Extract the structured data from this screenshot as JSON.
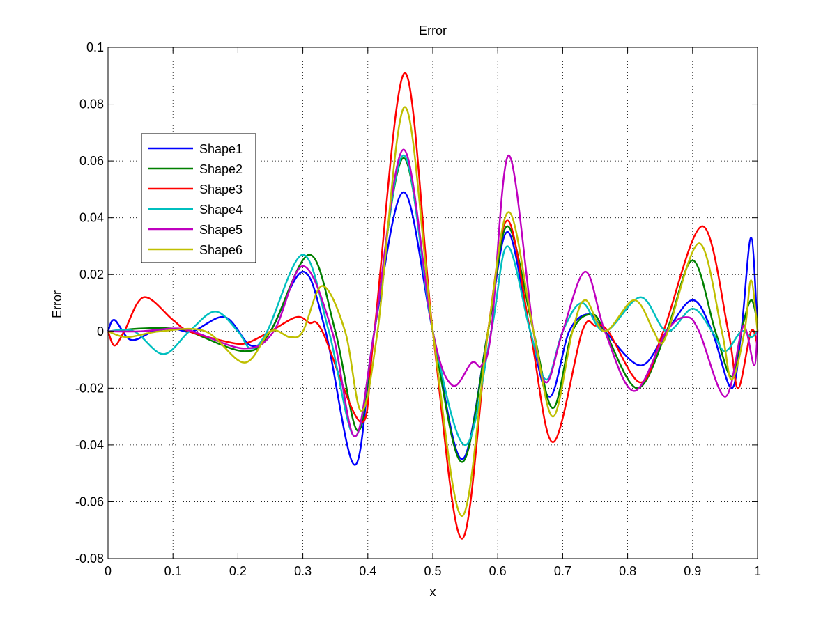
{
  "chart_data": {
    "type": "line",
    "title": "Error",
    "xlabel": "x",
    "ylabel": "Error",
    "xlim": [
      0,
      1
    ],
    "ylim": [
      -0.08,
      0.1
    ],
    "xticks": [
      0,
      0.1,
      0.2,
      0.3,
      0.4,
      0.5,
      0.6,
      0.7,
      0.8,
      0.9,
      1
    ],
    "xtick_labels": [
      "0",
      "0.1",
      "0.2",
      "0.3",
      "0.4",
      "0.5",
      "0.6",
      "0.7",
      "0.8",
      "0.9",
      "1"
    ],
    "yticks": [
      -0.08,
      -0.06,
      -0.04,
      -0.02,
      0,
      0.02,
      0.04,
      0.06,
      0.08,
      0.1
    ],
    "ytick_labels": [
      "-0.08",
      "-0.06",
      "-0.04",
      "-0.02",
      "0",
      "0.02",
      "0.04",
      "0.06",
      "0.08",
      "0.1"
    ],
    "grid": true,
    "legend_position": "upper-left",
    "series": [
      {
        "name": "Shape1",
        "color": "#0000ff",
        "points": [
          [
            0,
            0
          ],
          [
            0.01,
            0.004
          ],
          [
            0.035,
            -0.003
          ],
          [
            0.07,
            0
          ],
          [
            0.1,
            0.001
          ],
          [
            0.13,
            0
          ],
          [
            0.18,
            0.005
          ],
          [
            0.22,
            -0.005
          ],
          [
            0.25,
            0
          ],
          [
            0.3,
            0.021
          ],
          [
            0.335,
            0
          ],
          [
            0.38,
            -0.047
          ],
          [
            0.41,
            0
          ],
          [
            0.455,
            0.049
          ],
          [
            0.5,
            0
          ],
          [
            0.545,
            -0.045
          ],
          [
            0.585,
            0
          ],
          [
            0.615,
            0.035
          ],
          [
            0.65,
            0
          ],
          [
            0.68,
            -0.023
          ],
          [
            0.71,
            0
          ],
          [
            0.74,
            0.006
          ],
          [
            0.765,
            0
          ],
          [
            0.82,
            -0.012
          ],
          [
            0.86,
            0
          ],
          [
            0.9,
            0.011
          ],
          [
            0.93,
            0
          ],
          [
            0.96,
            -0.02
          ],
          [
            0.975,
            0
          ],
          [
            0.99,
            0.033
          ],
          [
            1,
            0
          ]
        ]
      },
      {
        "name": "Shape2",
        "color": "#008000",
        "points": [
          [
            0,
            0
          ],
          [
            0.05,
            0.001
          ],
          [
            0.1,
            0.001
          ],
          [
            0.125,
            0
          ],
          [
            0.21,
            -0.007
          ],
          [
            0.25,
            0
          ],
          [
            0.31,
            0.027
          ],
          [
            0.35,
            0
          ],
          [
            0.385,
            -0.035
          ],
          [
            0.41,
            0
          ],
          [
            0.455,
            0.061
          ],
          [
            0.5,
            0
          ],
          [
            0.545,
            -0.046
          ],
          [
            0.585,
            0
          ],
          [
            0.615,
            0.037
          ],
          [
            0.655,
            0
          ],
          [
            0.685,
            -0.027
          ],
          [
            0.715,
            0
          ],
          [
            0.745,
            0.006
          ],
          [
            0.765,
            0
          ],
          [
            0.815,
            -0.02
          ],
          [
            0.86,
            0
          ],
          [
            0.9,
            0.025
          ],
          [
            0.935,
            0
          ],
          [
            0.96,
            -0.016
          ],
          [
            0.975,
            0
          ],
          [
            0.99,
            0.011
          ],
          [
            1,
            0.003
          ]
        ]
      },
      {
        "name": "Shape3",
        "color": "#ff0000",
        "points": [
          [
            0,
            0
          ],
          [
            0.01,
            -0.005
          ],
          [
            0.025,
            0
          ],
          [
            0.055,
            0.012
          ],
          [
            0.1,
            0.004
          ],
          [
            0.125,
            0
          ],
          [
            0.19,
            -0.004
          ],
          [
            0.215,
            -0.004
          ],
          [
            0.25,
            0
          ],
          [
            0.29,
            0.005
          ],
          [
            0.31,
            0.003
          ],
          [
            0.33,
            0
          ],
          [
            0.39,
            -0.032
          ],
          [
            0.41,
            0
          ],
          [
            0.457,
            0.091
          ],
          [
            0.5,
            0
          ],
          [
            0.545,
            -0.073
          ],
          [
            0.585,
            0
          ],
          [
            0.615,
            0.039
          ],
          [
            0.65,
            0
          ],
          [
            0.685,
            -0.039
          ],
          [
            0.73,
            0
          ],
          [
            0.75,
            0.002
          ],
          [
            0.77,
            0
          ],
          [
            0.82,
            -0.018
          ],
          [
            0.855,
            0
          ],
          [
            0.915,
            0.037
          ],
          [
            0.955,
            0
          ],
          [
            0.97,
            -0.02
          ],
          [
            0.99,
            0
          ],
          [
            1,
            -0.005
          ]
        ]
      },
      {
        "name": "Shape4",
        "color": "#00bfbf",
        "points": [
          [
            0,
            0
          ],
          [
            0.04,
            0
          ],
          [
            0.085,
            -0.008
          ],
          [
            0.125,
            0
          ],
          [
            0.165,
            0.007
          ],
          [
            0.2,
            0
          ],
          [
            0.22,
            -0.006
          ],
          [
            0.245,
            0
          ],
          [
            0.3,
            0.027
          ],
          [
            0.34,
            0
          ],
          [
            0.38,
            -0.037
          ],
          [
            0.41,
            0
          ],
          [
            0.455,
            0.062
          ],
          [
            0.5,
            0
          ],
          [
            0.55,
            -0.04
          ],
          [
            0.59,
            0
          ],
          [
            0.615,
            0.03
          ],
          [
            0.65,
            0
          ],
          [
            0.675,
            -0.017
          ],
          [
            0.7,
            0
          ],
          [
            0.73,
            0.01
          ],
          [
            0.765,
            0
          ],
          [
            0.82,
            0.012
          ],
          [
            0.86,
            0
          ],
          [
            0.9,
            0.008
          ],
          [
            0.93,
            0
          ],
          [
            0.95,
            -0.007
          ],
          [
            0.975,
            0
          ],
          [
            0.99,
            -0.002
          ],
          [
            1,
            0
          ]
        ]
      },
      {
        "name": "Shape5",
        "color": "#bf00bf",
        "points": [
          [
            0,
            0
          ],
          [
            0.05,
            0
          ],
          [
            0.1,
            0.001
          ],
          [
            0.13,
            0
          ],
          [
            0.21,
            -0.006
          ],
          [
            0.255,
            0
          ],
          [
            0.3,
            0.023
          ],
          [
            0.345,
            0
          ],
          [
            0.38,
            -0.037
          ],
          [
            0.41,
            0
          ],
          [
            0.455,
            0.064
          ],
          [
            0.5,
            0
          ],
          [
            0.53,
            -0.019
          ],
          [
            0.56,
            -0.011
          ],
          [
            0.575,
            -0.012
          ],
          [
            0.59,
            0
          ],
          [
            0.617,
            0.062
          ],
          [
            0.655,
            0
          ],
          [
            0.675,
            -0.018
          ],
          [
            0.7,
            0
          ],
          [
            0.735,
            0.021
          ],
          [
            0.765,
            0
          ],
          [
            0.81,
            -0.021
          ],
          [
            0.86,
            0
          ],
          [
            0.89,
            0.005
          ],
          [
            0.91,
            0
          ],
          [
            0.95,
            -0.023
          ],
          [
            0.975,
            0
          ],
          [
            0.983,
            0
          ],
          [
            0.995,
            -0.012
          ],
          [
            1,
            0
          ]
        ]
      },
      {
        "name": "Shape6",
        "color": "#bfbf00",
        "points": [
          [
            0,
            0
          ],
          [
            0.03,
            -0.002
          ],
          [
            0.08,
            0
          ],
          [
            0.15,
            0
          ],
          [
            0.21,
            -0.011
          ],
          [
            0.25,
            0
          ],
          [
            0.28,
            -0.002
          ],
          [
            0.3,
            0
          ],
          [
            0.33,
            0.016
          ],
          [
            0.365,
            0
          ],
          [
            0.39,
            -0.028
          ],
          [
            0.415,
            0
          ],
          [
            0.457,
            0.079
          ],
          [
            0.5,
            0
          ],
          [
            0.545,
            -0.065
          ],
          [
            0.585,
            0
          ],
          [
            0.617,
            0.042
          ],
          [
            0.655,
            0
          ],
          [
            0.685,
            -0.03
          ],
          [
            0.715,
            0
          ],
          [
            0.735,
            0.011
          ],
          [
            0.765,
            0
          ],
          [
            0.81,
            0.011
          ],
          [
            0.84,
            0
          ],
          [
            0.85,
            -0.004
          ],
          [
            0.862,
            0
          ],
          [
            0.91,
            0.031
          ],
          [
            0.945,
            0
          ],
          [
            0.96,
            -0.017
          ],
          [
            0.98,
            0
          ],
          [
            0.99,
            0.018
          ],
          [
            1,
            0
          ]
        ]
      }
    ]
  }
}
